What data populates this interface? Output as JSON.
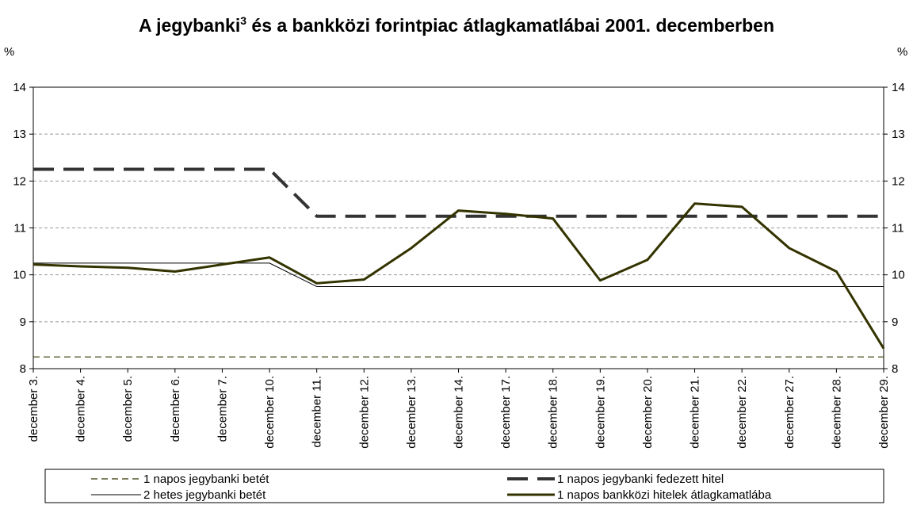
{
  "chart_data": {
    "type": "line",
    "title_parts": [
      "A jegybanki",
      "3",
      " és a bankközi forintpiac átlagkamatlábai 2001. decemberben"
    ],
    "y_label": "%",
    "y2_label": "%",
    "categories": [
      "december 3.",
      "december 4.",
      "december 5.",
      "december 6.",
      "december 7.",
      "december 10.",
      "december 11.",
      "december 12.",
      "december 13.",
      "december 14.",
      "december 17.",
      "december 18.",
      "december 19.",
      "december 20.",
      "december 21.",
      "december 22.",
      "december 27.",
      "december 28.",
      "december 29."
    ],
    "series": [
      {
        "name": "1 napos jegybanki betét",
        "color": "#333300",
        "linestyle": "dashed",
        "linewidth": 1.2,
        "values": [
          8.25,
          8.25,
          8.25,
          8.25,
          8.25,
          8.25,
          8.25,
          8.25,
          8.25,
          8.25,
          8.25,
          8.25,
          8.25,
          8.25,
          8.25,
          8.25,
          8.25,
          8.25,
          8.25
        ]
      },
      {
        "name": "1 napos jegybanki fedezett hitel",
        "color": "#333333",
        "linestyle": "longdashed",
        "linewidth": 4,
        "values": [
          12.25,
          12.25,
          12.25,
          12.25,
          12.25,
          12.25,
          11.25,
          11.25,
          11.25,
          11.25,
          11.25,
          11.25,
          11.25,
          11.25,
          11.25,
          11.25,
          11.25,
          11.25,
          11.25
        ]
      },
      {
        "name": "2 hetes jegybanki betét",
        "color": "#000000",
        "linestyle": "solid",
        "linewidth": 1,
        "values": [
          10.25,
          10.25,
          10.25,
          10.25,
          10.25,
          10.25,
          9.75,
          9.75,
          9.75,
          9.75,
          9.75,
          9.75,
          9.75,
          9.75,
          9.75,
          9.75,
          9.75,
          9.75,
          9.75
        ]
      },
      {
        "name": "1 napos bankközi hitelek átlagkamatlába",
        "color": "#333300",
        "linestyle": "solid",
        "linewidth": 3,
        "values": [
          10.22,
          10.18,
          10.15,
          10.07,
          10.22,
          10.37,
          9.82,
          9.9,
          10.57,
          11.37,
          11.3,
          11.2,
          9.88,
          10.32,
          11.52,
          11.45,
          10.57,
          10.07,
          8.43
        ]
      }
    ],
    "ylim": [
      8,
      14
    ],
    "yticks": [
      8,
      9,
      10,
      11,
      12,
      13,
      14
    ],
    "y2lim": [
      8,
      14
    ],
    "y2ticks": [
      8,
      9,
      10,
      11,
      12,
      13,
      14
    ],
    "grid": true
  }
}
